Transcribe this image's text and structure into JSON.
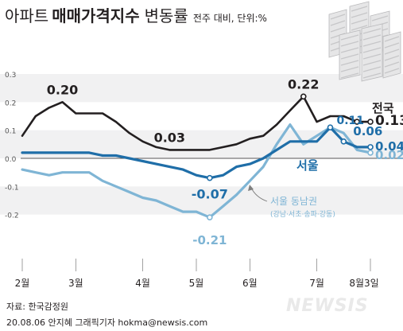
{
  "header": {
    "title_prefix": "아파트",
    "title_main": "매매가격지수",
    "title_suffix": "변동률",
    "unit": "전주 대비, 단위:%"
  },
  "footer": {
    "source": "자료: 한국감정원",
    "credit": "20.08.06 안지혜 그래픽기자 hokma@newsis.com",
    "logo": "NEWSIS"
  },
  "colors": {
    "national": "#231f20",
    "seoul": "#1f6ea8",
    "southeast": "#7fb5d5",
    "band": "#f1f1f2",
    "zero_line": "#231f20"
  },
  "chart_data": {
    "type": "line",
    "title": "아파트 매매가격지수 변동률",
    "ylabel": "",
    "xlabel": "",
    "ylim": [
      -0.3,
      0.3
    ],
    "yticks": [
      "0.3",
      "0.2",
      "0.1",
      "0.0",
      "-0.1",
      "-0.2"
    ],
    "month_labels": [
      "2월",
      "3월",
      "4월",
      "5월",
      "6월",
      "7월",
      "8월3일"
    ],
    "x": [
      "2/3",
      "2/10",
      "2/17",
      "2/24",
      "3/2",
      "3/9",
      "3/16",
      "3/23",
      "3/30",
      "4/6",
      "4/13",
      "4/20",
      "4/27",
      "5/4",
      "5/11",
      "5/18",
      "5/25",
      "6/1",
      "6/8",
      "6/15",
      "6/22",
      "6/29",
      "7/6",
      "7/13",
      "7/20",
      "7/27",
      "8/3"
    ],
    "series": [
      {
        "name": "전국",
        "values": [
          0.08,
          0.15,
          0.18,
          0.2,
          0.16,
          0.16,
          0.16,
          0.13,
          0.09,
          0.06,
          0.04,
          0.03,
          0.03,
          0.03,
          0.03,
          0.04,
          0.05,
          0.07,
          0.08,
          0.12,
          0.17,
          0.22,
          0.13,
          0.15,
          0.15,
          0.13,
          0.13
        ],
        "callouts": [
          {
            "label": "0.20",
            "index": 3
          },
          {
            "label": "0.03",
            "index": 11
          },
          {
            "label": "0.22",
            "index": 21
          },
          {
            "label": "0.13",
            "index": 26
          }
        ]
      },
      {
        "name": "서울",
        "values": [
          0.02,
          0.02,
          0.02,
          0.02,
          0.02,
          0.02,
          0.01,
          0.01,
          0.0,
          -0.01,
          -0.02,
          -0.03,
          -0.04,
          -0.06,
          -0.07,
          -0.06,
          -0.03,
          -0.02,
          0.0,
          0.03,
          0.06,
          0.06,
          0.06,
          0.11,
          0.06,
          0.04,
          0.04
        ],
        "callouts": [
          {
            "label": "-0.07",
            "index": 14
          },
          {
            "label": "0.11",
            "index": 23
          },
          {
            "label": "0.06",
            "index": 24
          },
          {
            "label": "0.04",
            "index": 26
          }
        ]
      },
      {
        "name": "서울 동남권",
        "sublabel": "(강남·서초·송파·강동)",
        "values": [
          -0.04,
          -0.05,
          -0.06,
          -0.05,
          -0.05,
          -0.05,
          -0.08,
          -0.1,
          -0.12,
          -0.14,
          -0.15,
          -0.17,
          -0.19,
          -0.19,
          -0.21,
          -0.17,
          -0.13,
          -0.08,
          -0.03,
          0.05,
          0.12,
          0.05,
          0.08,
          0.11,
          0.09,
          0.03,
          0.02
        ],
        "callouts": [
          {
            "label": "-0.21",
            "index": 14
          },
          {
            "label": "0.02",
            "index": 26
          }
        ]
      }
    ],
    "grid": false,
    "legend": "inline labels on lines"
  }
}
